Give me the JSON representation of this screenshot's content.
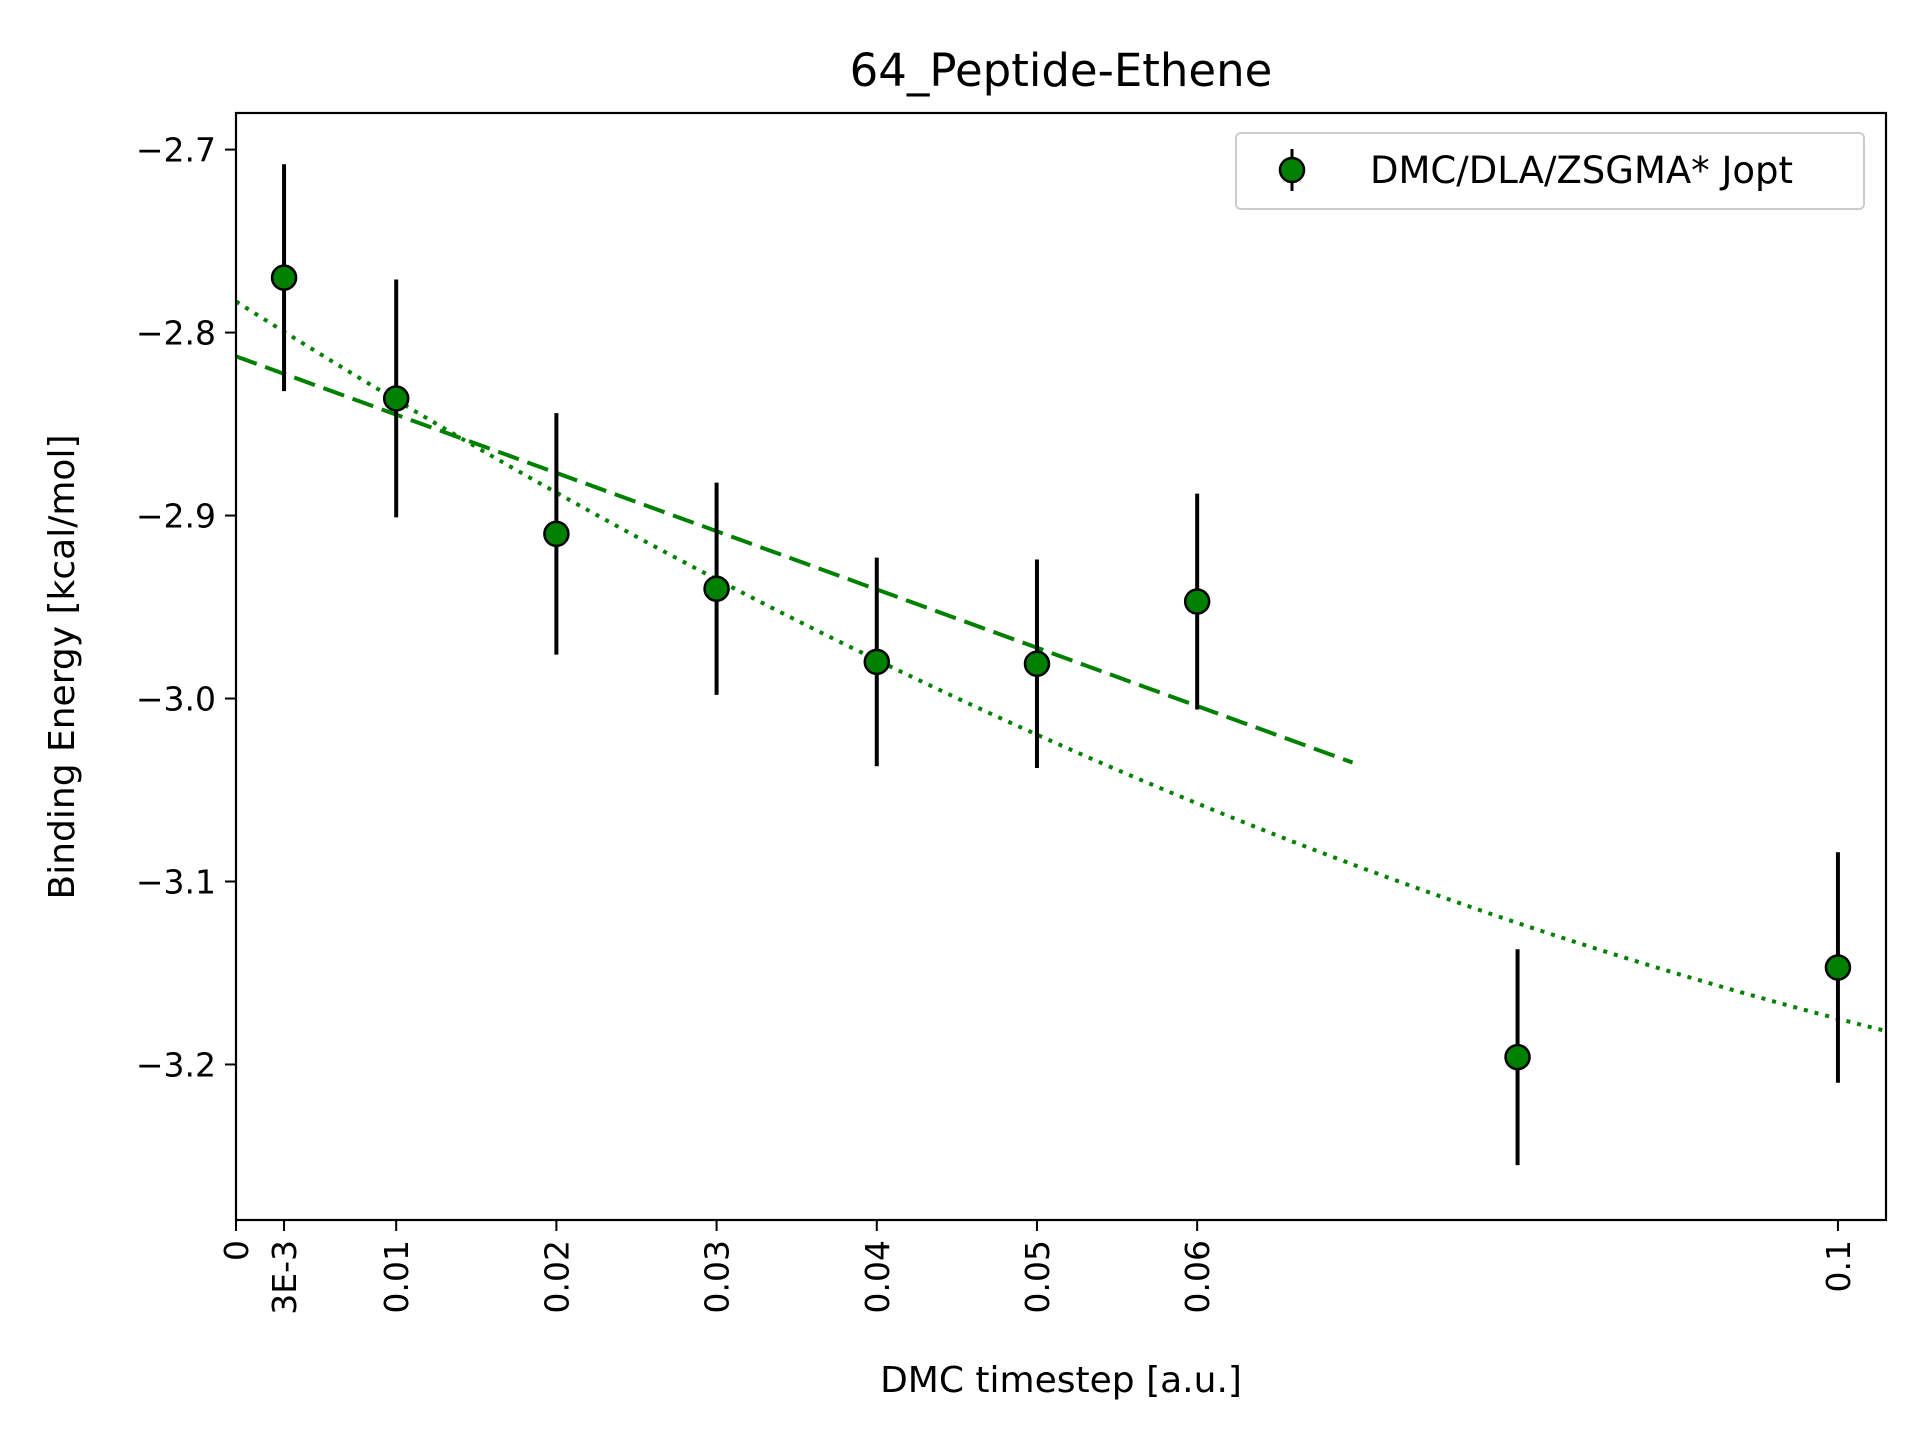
{
  "chart_data": {
    "type": "scatter",
    "title": "64_Peptide-Ethene",
    "xlabel": "DMC timestep [a.u.]",
    "ylabel": "Binding Energy [kcal/mol]",
    "xlim": [
      0,
      0.103
    ],
    "ylim": [
      -3.285,
      -2.68
    ],
    "x_ticks": [
      {
        "value": 0,
        "label": "0"
      },
      {
        "value": 0.003,
        "label": "3E-3"
      },
      {
        "value": 0.01,
        "label": "0.01"
      },
      {
        "value": 0.02,
        "label": "0.02"
      },
      {
        "value": 0.03,
        "label": "0.03"
      },
      {
        "value": 0.04,
        "label": "0.04"
      },
      {
        "value": 0.05,
        "label": "0.05"
      },
      {
        "value": 0.06,
        "label": "0.06"
      },
      {
        "value": 0.1,
        "label": "0.1"
      }
    ],
    "y_ticks": [
      {
        "value": -2.7,
        "label": "−2.7"
      },
      {
        "value": -2.8,
        "label": "−2.8"
      },
      {
        "value": -2.9,
        "label": "−2.9"
      },
      {
        "value": -3.0,
        "label": "−3.0"
      },
      {
        "value": -3.1,
        "label": "−3.1"
      },
      {
        "value": -3.2,
        "label": "−3.2"
      }
    ],
    "grid": false,
    "legend_position": "top-right",
    "series": [
      {
        "name": "DMC/DLA/ZSGMA* Jopt",
        "color": "#008000",
        "edge_color": "#000000",
        "errorbar_color": "#000000",
        "points": [
          {
            "x": 0.003,
            "y": -2.77,
            "err": 0.062
          },
          {
            "x": 0.01,
            "y": -2.836,
            "err": 0.065
          },
          {
            "x": 0.02,
            "y": -2.91,
            "err": 0.066
          },
          {
            "x": 0.03,
            "y": -2.94,
            "err": 0.058
          },
          {
            "x": 0.04,
            "y": -2.98,
            "err": 0.057
          },
          {
            "x": 0.05,
            "y": -2.981,
            "err": 0.057
          },
          {
            "x": 0.06,
            "y": -2.947,
            "err": 0.059
          },
          {
            "x": 0.08,
            "y": -3.196,
            "err": 0.059
          },
          {
            "x": 0.1,
            "y": -3.147,
            "err": 0.063
          }
        ]
      }
    ],
    "fits": [
      {
        "kind": "linear",
        "style": "dashed",
        "color": "#008000",
        "x": [
          0,
          0.0697
        ],
        "y": [
          -2.813,
          -3.035
        ]
      },
      {
        "kind": "quadratic",
        "style": "dotted",
        "color": "#008000",
        "coefficients": {
          "a": -2.783,
          "b": -5.55,
          "c": 16.3
        },
        "x_range": [
          0,
          0.103
        ]
      }
    ]
  }
}
